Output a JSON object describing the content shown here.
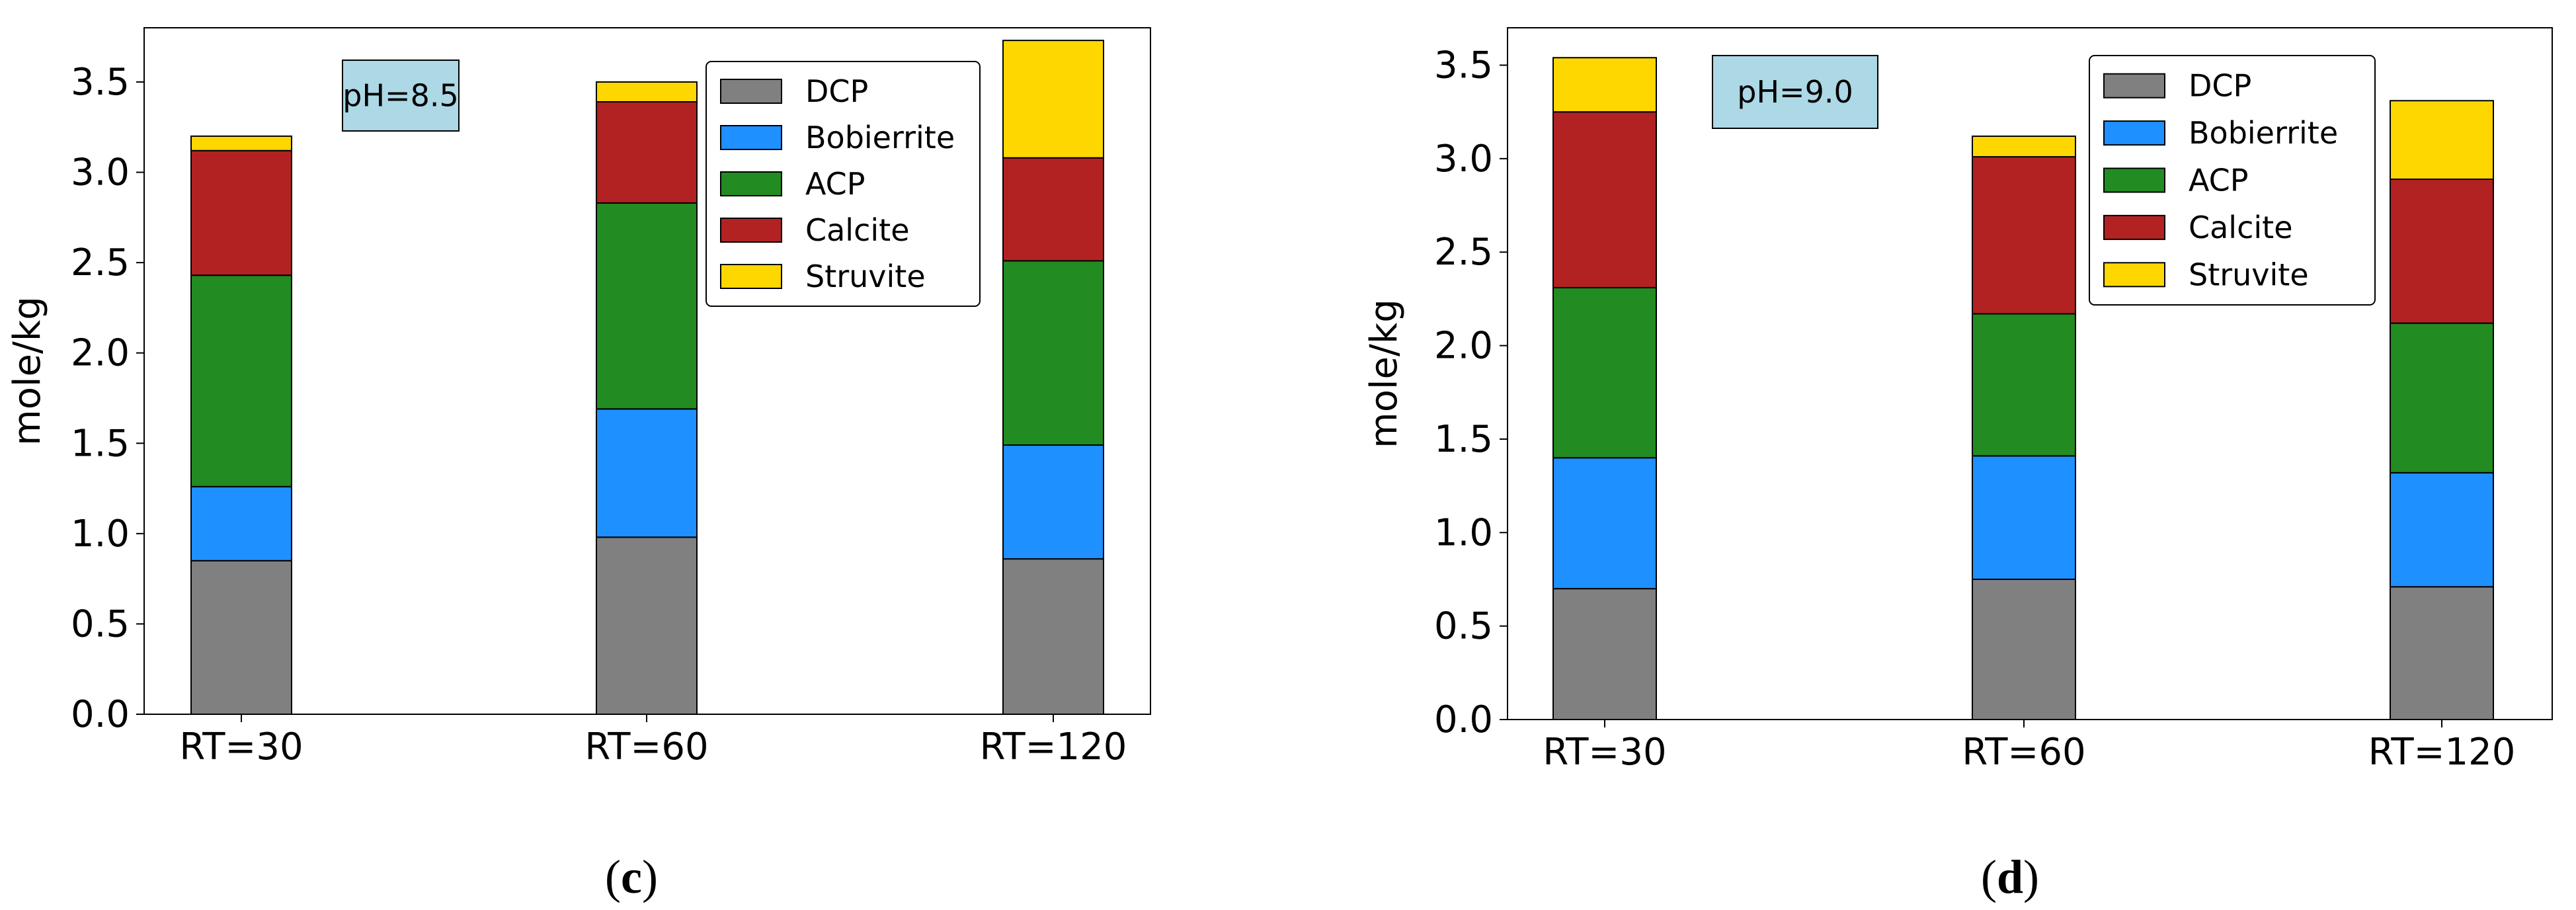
{
  "panels": [
    {
      "label_open": "(",
      "label_letter": "c",
      "label_close": ")"
    },
    {
      "label_open": "(",
      "label_letter": "d",
      "label_close": ")"
    }
  ],
  "colors": {
    "DCP": "#808080",
    "Bobierrite": "#1e90ff",
    "ACP": "#228b22",
    "Calcite": "#b22222",
    "Struvite": "#ffd700",
    "annotation_bg": "#add8e6"
  },
  "chart_data": [
    {
      "type": "bar",
      "stacked": true,
      "annotation": "pH=8.5",
      "ylabel": "mole/kg",
      "xlabel": "",
      "ylim": [
        0,
        3.8
      ],
      "yticks": [
        "0.0",
        "0.5",
        "1.0",
        "1.5",
        "2.0",
        "2.5",
        "3.0",
        "3.5"
      ],
      "categories": [
        "RT=30",
        "RT=60",
        "RT=120"
      ],
      "legend_position": "top-right",
      "grid": false,
      "series": [
        {
          "name": "DCP",
          "values": [
            0.85,
            0.98,
            0.86
          ]
        },
        {
          "name": "Bobierrite",
          "values": [
            0.41,
            0.71,
            0.63
          ]
        },
        {
          "name": "ACP",
          "values": [
            1.17,
            1.14,
            1.02
          ]
        },
        {
          "name": "Calcite",
          "values": [
            0.69,
            0.56,
            0.57
          ]
        },
        {
          "name": "Struvite",
          "values": [
            0.08,
            0.11,
            0.65
          ]
        }
      ]
    },
    {
      "type": "bar",
      "stacked": true,
      "annotation": "pH=9.0",
      "ylabel": "mole/kg",
      "xlabel": "",
      "ylim": [
        0,
        3.7
      ],
      "yticks": [
        "0.0",
        "0.5",
        "1.0",
        "1.5",
        "2.0",
        "2.5",
        "3.0",
        "3.5"
      ],
      "categories": [
        "RT=30",
        "RT=60",
        "RT=120"
      ],
      "legend_position": "top-right",
      "grid": false,
      "series": [
        {
          "name": "DCP",
          "values": [
            0.7,
            0.75,
            0.71
          ]
        },
        {
          "name": "Bobierrite",
          "values": [
            0.7,
            0.66,
            0.61
          ]
        },
        {
          "name": "ACP",
          "values": [
            0.91,
            0.76,
            0.8
          ]
        },
        {
          "name": "Calcite",
          "values": [
            0.94,
            0.84,
            0.77
          ]
        },
        {
          "name": "Struvite",
          "values": [
            0.29,
            0.11,
            0.42
          ]
        }
      ]
    }
  ]
}
